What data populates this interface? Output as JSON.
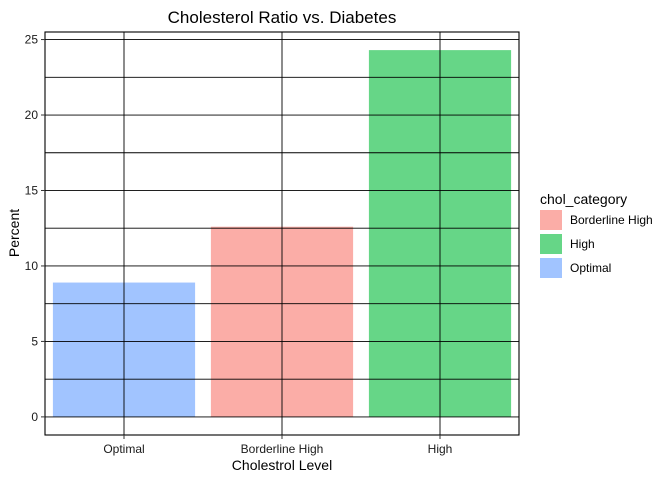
{
  "chart_data": {
    "type": "bar",
    "title": "Cholesterol Ratio vs. Diabetes",
    "xlabel": "Cholestrol Level",
    "ylabel": "Percent",
    "categories": [
      "Optimal",
      "Borderline High",
      "High"
    ],
    "values": [
      8.9,
      12.6,
      24.3
    ],
    "ylim": [
      -1.2,
      25.5
    ],
    "yticks": [
      0,
      5,
      10,
      15,
      20,
      25
    ],
    "grid": true,
    "bar_colors": [
      "#a1c4ff",
      "#fbada7",
      "#66d687"
    ],
    "legend": {
      "title": "chol_category",
      "placement": "right",
      "entries": [
        {
          "label": "Borderline High",
          "color": "#fbada7"
        },
        {
          "label": "High",
          "color": "#66d687"
        },
        {
          "label": "Optimal",
          "color": "#a1c4ff"
        }
      ]
    }
  }
}
